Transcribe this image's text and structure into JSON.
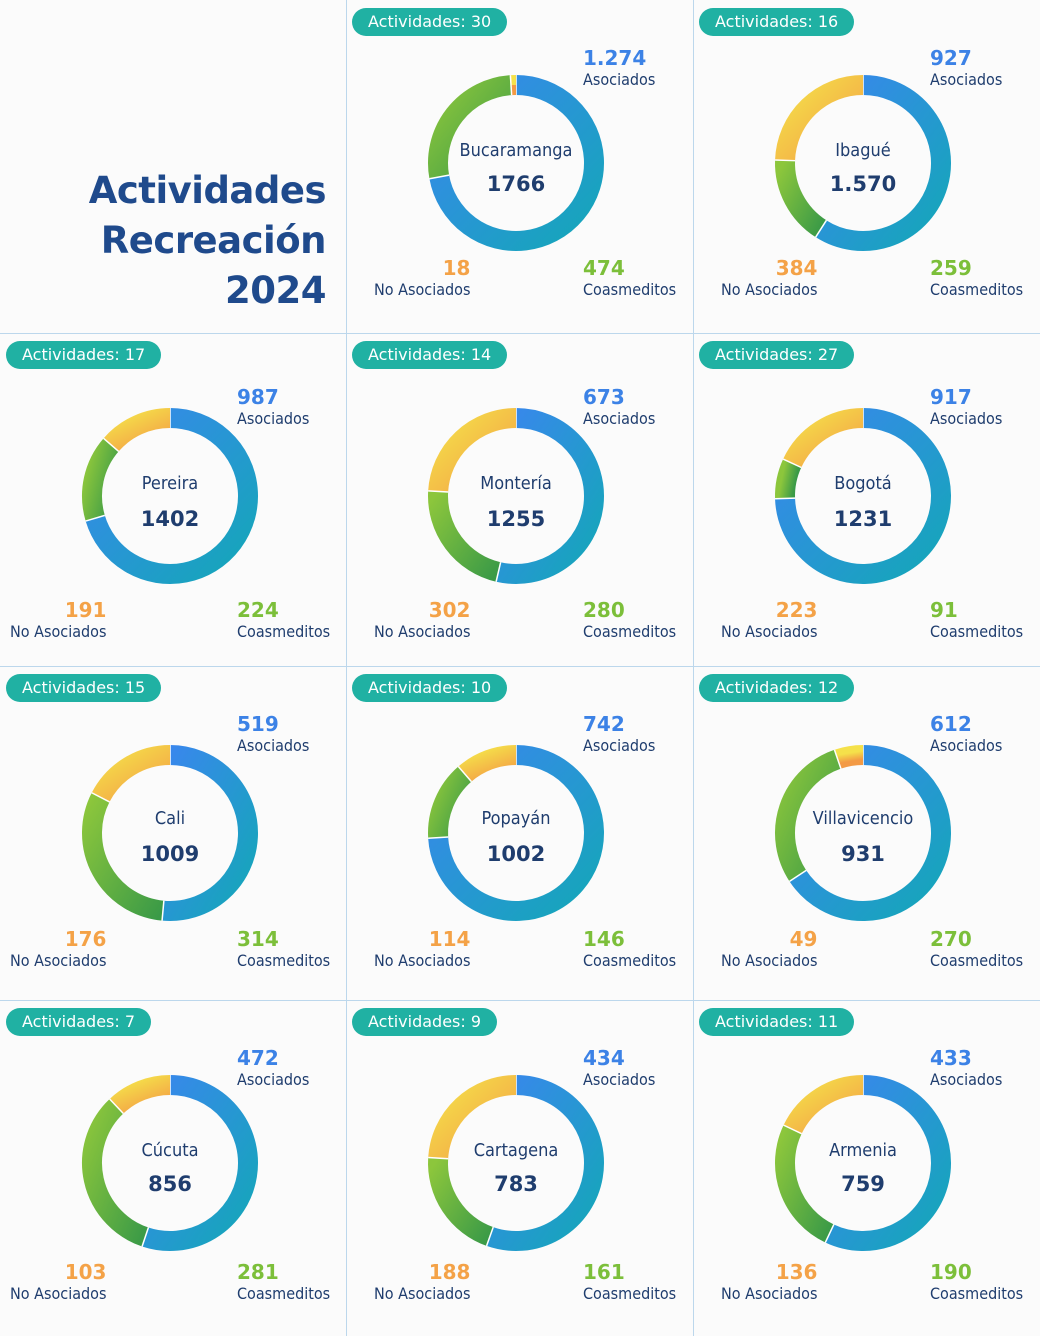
{
  "title": {
    "line1": "Actividades",
    "line2": "Recreación",
    "line3": "2024"
  },
  "colors": {
    "asociados": "#3c82e6",
    "coasmeditos": "#7cbf3a",
    "no_asociados": "#f4a247",
    "pill": "#20b1a3",
    "text": "#1f3d6e"
  },
  "labels": {
    "asociados": "Asociados",
    "coasmeditos": "Coasmeditos",
    "no_asociados": "No Asociados"
  },
  "chart_data": [
    {
      "type": "pie",
      "title": "Bucaramanga",
      "activities_label": "Actividades: 30",
      "total": "1766",
      "asociados": "1.274",
      "coasmeditos": "474",
      "no_asociados": "18",
      "values": [
        1274,
        474,
        18
      ]
    },
    {
      "type": "pie",
      "title": "Ibagué",
      "activities_label": "Actividades: 16",
      "total": "1.570",
      "asociados": "927",
      "coasmeditos": "259",
      "no_asociados": "384",
      "values": [
        927,
        259,
        384
      ]
    },
    {
      "type": "pie",
      "title": "Pereira",
      "activities_label": "Actividades: 17",
      "total": "1402",
      "asociados": "987",
      "coasmeditos": "224",
      "no_asociados": "191",
      "values": [
        987,
        224,
        191
      ]
    },
    {
      "type": "pie",
      "title": "Montería",
      "activities_label": "Actividades: 14",
      "total": "1255",
      "asociados": "673",
      "coasmeditos": "280",
      "no_asociados": "302",
      "values": [
        673,
        280,
        302
      ]
    },
    {
      "type": "pie",
      "title": "Bogotá",
      "activities_label": "Actividades: 27",
      "total": "1231",
      "asociados": "917",
      "coasmeditos": "91",
      "no_asociados": "223",
      "values": [
        917,
        91,
        223
      ]
    },
    {
      "type": "pie",
      "title": "Cali",
      "activities_label": "Actividades: 15",
      "total": "1009",
      "asociados": "519",
      "coasmeditos": "314",
      "no_asociados": "176",
      "values": [
        519,
        314,
        176
      ]
    },
    {
      "type": "pie",
      "title": "Popayán",
      "activities_label": "Actividades: 10",
      "total": "1002",
      "asociados": "742",
      "coasmeditos": "146",
      "no_asociados": "114",
      "values": [
        742,
        146,
        114
      ]
    },
    {
      "type": "pie",
      "title": "Villavicencio",
      "activities_label": "Actividades: 12",
      "total": "931",
      "asociados": "612",
      "coasmeditos": "270",
      "no_asociados": "49",
      "values": [
        612,
        270,
        49
      ]
    },
    {
      "type": "pie",
      "title": "Cúcuta",
      "activities_label": "Actividades: 7",
      "total": "856",
      "asociados": "472",
      "coasmeditos": "281",
      "no_asociados": "103",
      "values": [
        472,
        281,
        103
      ]
    },
    {
      "type": "pie",
      "title": "Cartagena",
      "activities_label": "Actividades: 9",
      "total": "783",
      "asociados": "434",
      "coasmeditos": "161",
      "no_asociados": "188",
      "values": [
        434,
        161,
        188
      ]
    },
    {
      "type": "pie",
      "title": "Armenia",
      "activities_label": "Actividades: 11",
      "total": "759",
      "asociados": "433",
      "coasmeditos": "190",
      "no_asociados": "136",
      "values": [
        433,
        190,
        136
      ]
    }
  ]
}
